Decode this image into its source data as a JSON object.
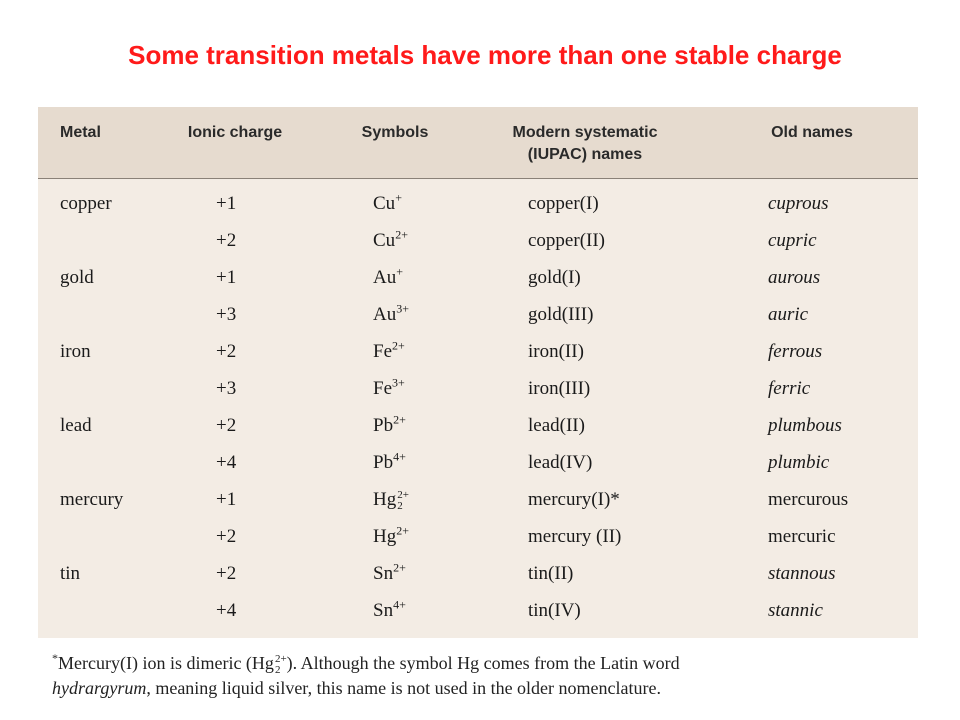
{
  "title": "Some transition metals have more than one stable charge",
  "table": {
    "headers": {
      "metal": "Metal",
      "charge": "Ionic charge",
      "symbol": "Symbols",
      "iupac_line1": "Modern systematic",
      "iupac_line2": "(IUPAC) names",
      "old": "Old names"
    },
    "rows": [
      {
        "metal": "copper",
        "charge": "+1",
        "sym_base": "Cu",
        "sym_sup": "+",
        "sym_sub": "",
        "iupac": "copper(I)",
        "old": "cuprous",
        "old_italic": true
      },
      {
        "metal": "",
        "charge": "+2",
        "sym_base": "Cu",
        "sym_sup": "2+",
        "sym_sub": "",
        "iupac": "copper(II)",
        "old": "cupric",
        "old_italic": true
      },
      {
        "metal": "gold",
        "charge": "+1",
        "sym_base": "Au",
        "sym_sup": "+",
        "sym_sub": "",
        "iupac": "gold(I)",
        "old": "aurous",
        "old_italic": true
      },
      {
        "metal": "",
        "charge": "+3",
        "sym_base": "Au",
        "sym_sup": "3+",
        "sym_sub": "",
        "iupac": "gold(III)",
        "old": "auric",
        "old_italic": true
      },
      {
        "metal": "iron",
        "charge": "+2",
        "sym_base": "Fe",
        "sym_sup": "2+",
        "sym_sub": "",
        "iupac": "iron(II)",
        "old": "ferrous",
        "old_italic": true
      },
      {
        "metal": "",
        "charge": "+3",
        "sym_base": "Fe",
        "sym_sup": "3+",
        "sym_sub": "",
        "iupac": "iron(III)",
        "old": "ferric",
        "old_italic": true
      },
      {
        "metal": "lead",
        "charge": "+2",
        "sym_base": "Pb",
        "sym_sup": "2+",
        "sym_sub": "",
        "iupac": "lead(II)",
        "old": "plumbous",
        "old_italic": true
      },
      {
        "metal": "",
        "charge": "+4",
        "sym_base": "Pb",
        "sym_sup": "4+",
        "sym_sub": "",
        "iupac": "lead(IV)",
        "old": "plumbic",
        "old_italic": true
      },
      {
        "metal": "mercury",
        "charge": "+1",
        "sym_base": "Hg",
        "sym_sup": "2+",
        "sym_sub": "2",
        "iupac": "mercury(I)*",
        "old": "mercurous",
        "old_italic": false
      },
      {
        "metal": "",
        "charge": "+2",
        "sym_base": "Hg",
        "sym_sup": "2+",
        "sym_sub": "",
        "iupac": "mercury (II)",
        "old": "mercuric",
        "old_italic": false
      },
      {
        "metal": "tin",
        "charge": "+2",
        "sym_base": "Sn",
        "sym_sup": "2+",
        "sym_sub": "",
        "iupac": "tin(II)",
        "old": "stannous",
        "old_italic": true
      },
      {
        "metal": "",
        "charge": "+4",
        "sym_base": "Sn",
        "sym_sup": "4+",
        "sym_sub": "",
        "iupac": "tin(IV)",
        "old": "stannic",
        "old_italic": true
      }
    ]
  },
  "footnote": {
    "star": "*",
    "part1": "Mercury(I) ion is dimeric (Hg",
    "formula_sup": "2+",
    "formula_sub": "2",
    "part2": "). Although the symbol Hg comes from the Latin word",
    "italic_word": "hydrargyrum",
    "part3": ", meaning liquid silver, this name is not used in the older nomenclature."
  },
  "colors": {
    "title": "#ff1a1a",
    "panel": "#f3ece4",
    "header": "#e6dbcf"
  }
}
